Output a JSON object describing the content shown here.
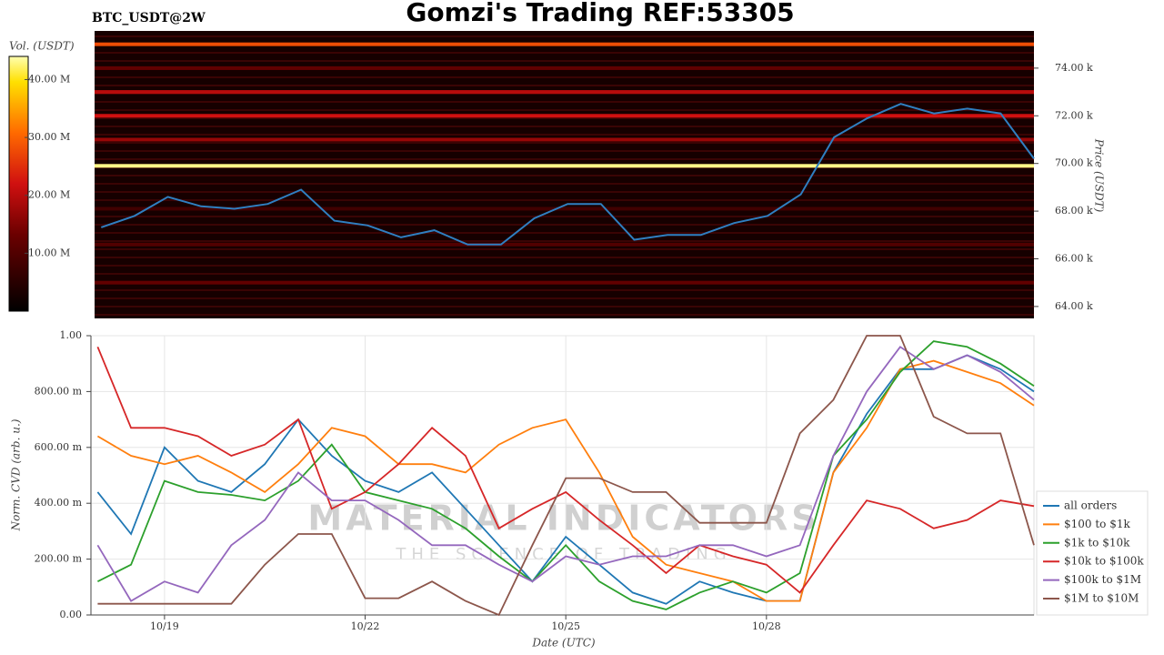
{
  "chart_data": [
    {
      "type": "heatmap",
      "title": "Gomzi's Trading REF:53305",
      "subtitle": "BTC_USDT@2W",
      "ylabel": "Price (USDT)",
      "colorbar_label": "Vol. (USDT)",
      "x": [
        18.0,
        18.5,
        19.0,
        19.5,
        20.0,
        20.5,
        21.0,
        21.5,
        22.0,
        22.5,
        23.0,
        23.5,
        24.0,
        24.5,
        25.0,
        25.5,
        26.0,
        26.5,
        27.0,
        27.5,
        28.0,
        28.5,
        29.0,
        29.5,
        30.0,
        30.5,
        31.0,
        31.5,
        32.0
      ],
      "values": [
        67320,
        67800,
        68600,
        68200,
        68100,
        68300,
        68900,
        67600,
        67400,
        66900,
        67200,
        66600,
        66600,
        67700,
        68300,
        68300,
        66800,
        67000,
        67000,
        67500,
        67800,
        68700,
        71100,
        71900,
        72500,
        72100,
        72300,
        72100,
        70200
      ],
      "color": "#2f7fc1",
      "xlim": [
        17.9,
        32.0
      ],
      "ylim": [
        63500,
        75560
      ],
      "yticks": [
        {
          "value": 64000,
          "label": "64.00 k"
        },
        {
          "value": 66000,
          "label": "66.00 k"
        },
        {
          "value": 68000,
          "label": "68.00 k"
        },
        {
          "value": 70000,
          "label": "70.00 k"
        },
        {
          "value": 72000,
          "label": "72.00 k"
        },
        {
          "value": 74000,
          "label": "74.00 k"
        }
      ],
      "clim": [
        0,
        44000000
      ],
      "cticks": [
        {
          "value": 10000000,
          "label": "10.00 M"
        },
        {
          "value": 20000000,
          "label": "20.00 M"
        },
        {
          "value": 30000000,
          "label": "30.00 M"
        },
        {
          "value": 40000000,
          "label": "40.00 M"
        }
      ],
      "levels": [
        {
          "price": 75000,
          "volume": 28000000
        },
        {
          "price": 74000,
          "volume": 12000000
        },
        {
          "price": 73000,
          "volume": 20000000
        },
        {
          "price": 72000,
          "volume": 22000000
        },
        {
          "price": 71000,
          "volume": 17000000
        },
        {
          "price": 69900,
          "volume": 43000000
        },
        {
          "price": 68100,
          "volume": 8000000
        },
        {
          "price": 66600,
          "volume": 10000000
        },
        {
          "price": 65000,
          "volume": 12000000
        }
      ]
    },
    {
      "type": "line",
      "xlabel": "Date (UTC)",
      "ylabel": "Norm. CVD (arb. u.)",
      "watermark": "MATERIAL INDICATORS",
      "watermark_sub": "THE SCIENCE OF TRADING",
      "grid": true,
      "legend": "lower right",
      "x": [
        18.0,
        18.5,
        19.0,
        19.5,
        20.0,
        20.5,
        21.0,
        21.5,
        22.0,
        22.5,
        23.0,
        23.5,
        24.0,
        24.5,
        25.0,
        25.5,
        26.0,
        26.5,
        27.0,
        27.5,
        28.0,
        28.5,
        29.0,
        29.5,
        30.0,
        30.5,
        31.0,
        31.5,
        32.0
      ],
      "xlim": [
        17.9,
        32.0
      ],
      "xticks": [
        {
          "value": 19,
          "label": "10/19"
        },
        {
          "value": 22,
          "label": "10/22"
        },
        {
          "value": 25,
          "label": "10/25"
        },
        {
          "value": 28,
          "label": "10/28"
        }
      ],
      "ylim": [
        0,
        1
      ],
      "yticks": [
        {
          "value": 0,
          "label": "0.00"
        },
        {
          "value": 0.2,
          "label": "200.00 m"
        },
        {
          "value": 0.4,
          "label": "400.00 m"
        },
        {
          "value": 0.6,
          "label": "600.00 m"
        },
        {
          "value": 0.8,
          "label": "800.00 m"
        },
        {
          "value": 1,
          "label": "1.00"
        }
      ],
      "series": [
        {
          "name": "all orders",
          "color": "#1f77b4",
          "values": [
            0.44,
            0.29,
            0.6,
            0.48,
            0.44,
            0.54,
            0.7,
            0.57,
            0.48,
            0.44,
            0.51,
            0.38,
            0.25,
            0.12,
            0.28,
            0.18,
            0.08,
            0.04,
            0.12,
            0.08,
            0.05,
            0.05,
            0.51,
            0.72,
            0.88,
            0.88,
            0.93,
            0.88,
            0.8
          ]
        },
        {
          "name": "$100 to $1k",
          "color": "#ff7f0e",
          "values": [
            0.64,
            0.57,
            0.54,
            0.57,
            0.51,
            0.44,
            0.54,
            0.67,
            0.64,
            0.54,
            0.54,
            0.51,
            0.61,
            0.67,
            0.7,
            0.51,
            0.28,
            0.18,
            0.15,
            0.12,
            0.05,
            0.05,
            0.51,
            0.67,
            0.88,
            0.91,
            0.87,
            0.83,
            0.75
          ]
        },
        {
          "name": "$1k to $10k",
          "color": "#2ca02c",
          "values": [
            0.12,
            0.18,
            0.48,
            0.44,
            0.43,
            0.41,
            0.48,
            0.61,
            0.44,
            0.41,
            0.38,
            0.31,
            0.21,
            0.12,
            0.25,
            0.12,
            0.05,
            0.02,
            0.08,
            0.12,
            0.08,
            0.15,
            0.57,
            0.7,
            0.87,
            0.98,
            0.96,
            0.9,
            0.82
          ]
        },
        {
          "name": "$10k to $100k",
          "color": "#d62728",
          "values": [
            0.96,
            0.67,
            0.67,
            0.64,
            0.57,
            0.61,
            0.7,
            0.38,
            0.44,
            0.54,
            0.67,
            0.57,
            0.31,
            0.38,
            0.44,
            0.34,
            0.25,
            0.15,
            0.25,
            0.21,
            0.18,
            0.08,
            0.25,
            0.41,
            0.38,
            0.31,
            0.34,
            0.41,
            0.39
          ]
        },
        {
          "name": "$100k to $1M",
          "color": "#9467bd",
          "values": [
            0.25,
            0.05,
            0.12,
            0.08,
            0.25,
            0.34,
            0.51,
            0.41,
            0.41,
            0.34,
            0.25,
            0.25,
            0.18,
            0.12,
            0.21,
            0.18,
            0.21,
            0.21,
            0.25,
            0.25,
            0.21,
            0.25,
            0.57,
            0.8,
            0.96,
            0.88,
            0.93,
            0.87,
            0.77
          ]
        },
        {
          "name": "$1M to $10M",
          "color": "#8c564b",
          "values": [
            0.04,
            0.04,
            0.04,
            0.04,
            0.04,
            0.18,
            0.29,
            0.29,
            0.06,
            0.06,
            0.12,
            0.05,
            0.0,
            0.25,
            0.49,
            0.49,
            0.44,
            0.44,
            0.33,
            0.33,
            0.33,
            0.65,
            0.77,
            1.0,
            1.0,
            0.71,
            0.65,
            0.65,
            0.25
          ]
        }
      ]
    }
  ]
}
